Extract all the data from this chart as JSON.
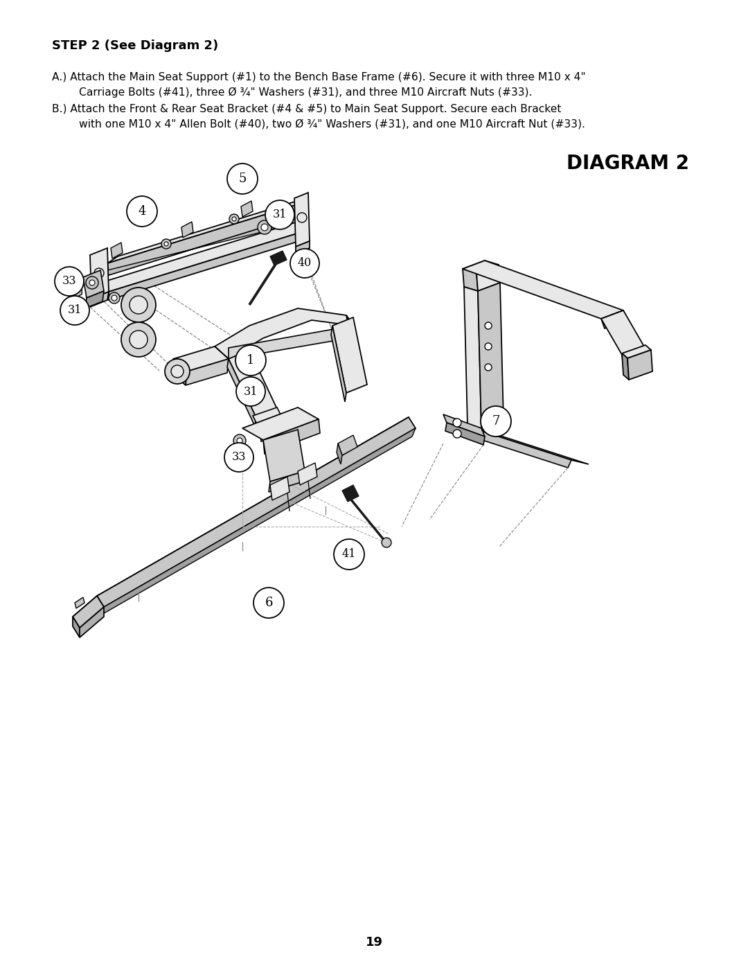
{
  "background_color": "#ffffff",
  "page_number": "19",
  "step_title": "STEP 2 (See Diagram 2)",
  "diagram_title": "DIAGRAM 2",
  "line_A1": "A.) Attach the Main Seat Support (#1) to the Bench Base Frame (#6). Secure it with three M10 x 4\"",
  "line_A2": "        Carriage Bolts (#41), three Ø ¾\" Washers (#31), and three M10 Aircraft Nuts (#33).",
  "line_B1": "B.) Attach the Front & Rear Seat Bracket (#4 & #5) to Main Seat Support. Secure each Bracket",
  "line_B2": "        with one M10 x 4\" Allen Bolt (#40), two Ø ¾\" Washers (#31), and one M10 Aircraft Nut (#33).",
  "light_gray": "#e8e8e8",
  "mid_gray": "#c8c8c8",
  "dark_gray": "#a0a0a0",
  "near_black": "#1a1a1a"
}
